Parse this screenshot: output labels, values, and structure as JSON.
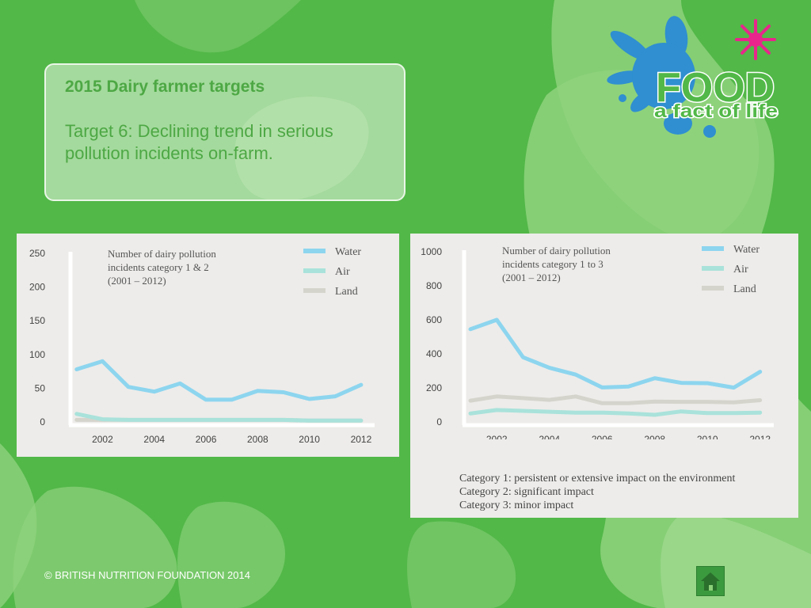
{
  "slide": {
    "heading": "2015 Dairy farmer targets",
    "body": "Target 6: Declining trend in serious pollution incidents on-farm."
  },
  "logo": {
    "word": "FOOD",
    "tagline": "a fact of life"
  },
  "footer": "© BRITISH NUTRITION FOUNDATION 2014",
  "colors": {
    "background": "#52b848",
    "water": "#8dd5ef",
    "air": "#a9e2da",
    "land": "#d5d4cc",
    "accent": "#e8268c"
  },
  "chart_data": [
    {
      "type": "line",
      "title_lines": [
        "Number of dairy pollution",
        "incidents category 1 & 2",
        "(2001 – 2012)"
      ],
      "x": [
        2001,
        2002,
        2003,
        2004,
        2005,
        2006,
        2007,
        2008,
        2009,
        2010,
        2011,
        2012
      ],
      "xticks": [
        2002,
        2004,
        2006,
        2008,
        2010,
        2012
      ],
      "yticks": [
        0,
        50,
        100,
        150,
        200,
        250
      ],
      "ylim": [
        0,
        250
      ],
      "xlim": [
        2000.7,
        2012.4
      ],
      "grid": false,
      "legend_position": "top-right",
      "series": [
        {
          "name": "Water",
          "color": "#8dd5ef",
          "values": [
            78,
            90,
            52,
            45,
            57,
            33,
            33,
            46,
            44,
            34,
            38,
            55
          ]
        },
        {
          "name": "Air",
          "color": "#a9e2da",
          "values": [
            12,
            4,
            3,
            3,
            3,
            3,
            3,
            3,
            3,
            2,
            2,
            2
          ]
        },
        {
          "name": "Land",
          "color": "#d5d4cc",
          "values": [
            3,
            3,
            3,
            3,
            3,
            3,
            3,
            3,
            3,
            2,
            2,
            2
          ]
        }
      ]
    },
    {
      "type": "line",
      "title_lines": [
        "Number of dairy pollution",
        "incidents category 1 to 3",
        "(2001 – 2012)"
      ],
      "x": [
        2001,
        2002,
        2003,
        2004,
        2005,
        2006,
        2007,
        2008,
        2009,
        2010,
        2011,
        2012
      ],
      "xticks": [
        2002,
        2004,
        2006,
        2008,
        2010,
        2012
      ],
      "yticks": [
        0,
        200,
        400,
        600,
        800,
        1000
      ],
      "ylim": [
        0,
        1000
      ],
      "xlim": [
        2000.7,
        2012.4
      ],
      "grid": false,
      "legend_position": "top-right",
      "series": [
        {
          "name": "Water",
          "color": "#8dd5ef",
          "values": [
            545,
            600,
            380,
            318,
            278,
            203,
            208,
            257,
            230,
            228,
            202,
            295
          ]
        },
        {
          "name": "Air",
          "color": "#a9e2da",
          "values": [
            50,
            70,
            65,
            60,
            55,
            55,
            50,
            42,
            62,
            52,
            52,
            55
          ]
        },
        {
          "name": "Land",
          "color": "#d5d4cc",
          "values": [
            125,
            150,
            140,
            130,
            150,
            110,
            110,
            120,
            118,
            118,
            115,
            128
          ]
        }
      ],
      "notes": [
        "Category 1: persistent or extensive impact on the environment",
        "Category 2: significant impact",
        "Category 3: minor impact"
      ]
    }
  ]
}
